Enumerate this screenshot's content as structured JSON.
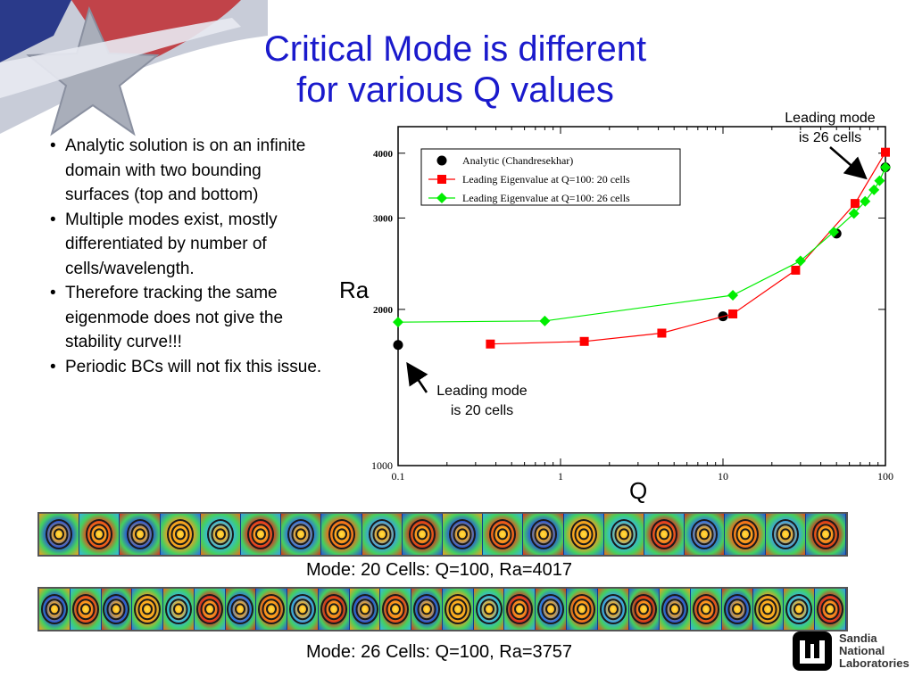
{
  "slide": {
    "title_line1": "Critical Mode is different",
    "title_line2": "for various Q values",
    "bullets": [
      "Analytic solution is on an infinite domain with two bounding surfaces (top and bottom)",
      "Multiple modes exist, mostly differentiated by number of cells/wavelength.",
      "Therefore tracking the same eigenmode does not give the stability curve!!!",
      "Periodic BCs will not fix this issue."
    ],
    "annotation_top": [
      "Leading mode",
      "is 26 cells"
    ],
    "annotation_bottom": [
      "Leading mode",
      "is 20 cells"
    ],
    "caption_20": "Mode: 20 Cells: Q=100, Ra=4017",
    "caption_26": "Mode: 26 Cells: Q=100, Ra=3757",
    "logo_text": [
      "Sandia",
      "National",
      "Laboratories"
    ],
    "colors": {
      "title": "#1a1acc",
      "analytic": "#000000",
      "q20": "#ff0000",
      "q26": "#00ee00"
    }
  },
  "chart_data": {
    "type": "line",
    "xlabel": "Q",
    "ylabel": "Ra",
    "xscale": "log",
    "yscale": "log",
    "xlim": [
      0.1,
      100
    ],
    "ylim": [
      1000,
      4500
    ],
    "x_ticks": [
      "0.1",
      "1",
      "10",
      "100"
    ],
    "y_ticks": [
      "1000",
      "2000",
      "3000",
      "4000"
    ],
    "legend_position": "top-left",
    "series": [
      {
        "name": "Analytic (Chandresekhar)",
        "marker": "circle",
        "line": false,
        "color": "#000000",
        "points": [
          [
            0.1,
            1708
          ],
          [
            10,
            1940
          ],
          [
            50,
            2800
          ],
          [
            100,
            3757
          ]
        ]
      },
      {
        "name": "Leading Eigenvalue at Q=100: 20 cells",
        "marker": "square",
        "line": true,
        "color": "#ff0000",
        "points": [
          [
            0.37,
            1715
          ],
          [
            1.4,
            1735
          ],
          [
            4.2,
            1800
          ],
          [
            11.5,
            1960
          ],
          [
            28,
            2380
          ],
          [
            65,
            3200
          ],
          [
            100,
            4017
          ]
        ]
      },
      {
        "name": "Leading Eigenvalue at Q=100: 26 cells",
        "marker": "diamond",
        "line": true,
        "color": "#00ee00",
        "points": [
          [
            0.1,
            1890
          ],
          [
            0.8,
            1900
          ],
          [
            11.5,
            2130
          ],
          [
            30,
            2480
          ],
          [
            48,
            2820
          ],
          [
            64,
            3060
          ],
          [
            75,
            3230
          ],
          [
            85,
            3400
          ],
          [
            92,
            3540
          ],
          [
            100,
            3757
          ]
        ]
      }
    ]
  }
}
